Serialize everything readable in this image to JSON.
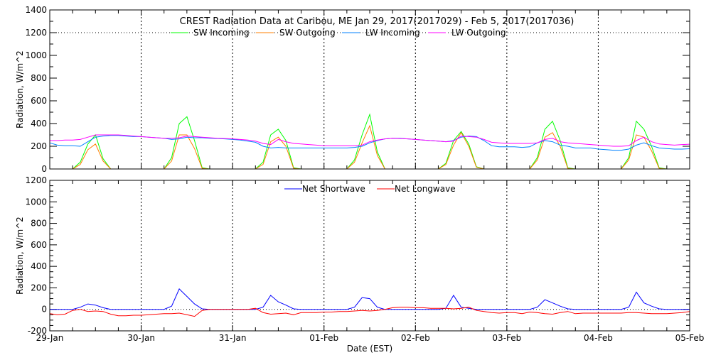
{
  "chart_data": [
    {
      "type": "line",
      "title": "CREST Radiation Data at Caribou, ME   Jan 29, 2017(2017029) - Feb  5, 2017(2017036)",
      "ylabel": "Radiation, W/m^2",
      "xlabel": "",
      "x_unit": "hours since 29-Jan 00:00 EST",
      "x_step_hours": 2,
      "ylim": [
        0,
        1400
      ],
      "yticks": [
        "0",
        "200",
        "400",
        "600",
        "800",
        "1000",
        "1200",
        "1400"
      ],
      "legend_placement": "top-center",
      "series": [
        {
          "name": "SW Incoming",
          "color": "#00ff00",
          "values": [
            0,
            0,
            0,
            0,
            60,
            220,
            300,
            90,
            0,
            0,
            0,
            0,
            0,
            0,
            0,
            0,
            100,
            400,
            460,
            250,
            10,
            0,
            0,
            0,
            0,
            0,
            0,
            0,
            60,
            300,
            350,
            250,
            10,
            0,
            0,
            0,
            0,
            0,
            0,
            0,
            80,
            300,
            480,
            150,
            0,
            0,
            0,
            0,
            0,
            0,
            0,
            0,
            50,
            250,
            330,
            220,
            20,
            0,
            0,
            0,
            0,
            0,
            0,
            0,
            100,
            350,
            420,
            250,
            10,
            0,
            0,
            0,
            0,
            0,
            0,
            0,
            100,
            420,
            350,
            200,
            10,
            0,
            0,
            0,
            0
          ]
        },
        {
          "name": "SW Outgoing",
          "color": "#ff7f00",
          "values": [
            0,
            0,
            0,
            0,
            40,
            170,
            220,
            70,
            0,
            0,
            0,
            0,
            0,
            0,
            0,
            0,
            70,
            300,
            300,
            180,
            5,
            0,
            0,
            0,
            0,
            0,
            0,
            0,
            40,
            240,
            280,
            200,
            5,
            0,
            0,
            0,
            0,
            0,
            0,
            0,
            60,
            230,
            380,
            120,
            0,
            0,
            0,
            0,
            0,
            0,
            0,
            0,
            40,
            210,
            320,
            200,
            15,
            0,
            0,
            0,
            0,
            0,
            0,
            0,
            80,
            280,
            320,
            200,
            5,
            0,
            0,
            0,
            0,
            0,
            0,
            0,
            80,
            300,
            280,
            160,
            5,
            0,
            0,
            0,
            0
          ]
        },
        {
          "name": "LW Incoming",
          "color": "#0080ff",
          "values": [
            230,
            210,
            205,
            205,
            200,
            240,
            280,
            290,
            295,
            295,
            290,
            285,
            285,
            280,
            275,
            270,
            260,
            265,
            280,
            275,
            275,
            270,
            268,
            265,
            260,
            255,
            245,
            235,
            200,
            185,
            190,
            185,
            185,
            185,
            185,
            185,
            185,
            185,
            185,
            185,
            190,
            200,
            230,
            250,
            265,
            270,
            270,
            265,
            260,
            255,
            250,
            245,
            240,
            250,
            280,
            290,
            285,
            250,
            205,
            195,
            195,
            195,
            190,
            195,
            230,
            250,
            240,
            210,
            200,
            185,
            185,
            185,
            175,
            170,
            165,
            165,
            175,
            210,
            230,
            205,
            185,
            180,
            175,
            175,
            178
          ]
        },
        {
          "name": "LW Outgoing",
          "color": "#ff00ff",
          "values": [
            250,
            250,
            255,
            255,
            260,
            280,
            300,
            300,
            300,
            300,
            295,
            290,
            285,
            280,
            275,
            270,
            270,
            275,
            290,
            285,
            280,
            275,
            270,
            268,
            265,
            260,
            255,
            245,
            225,
            215,
            260,
            240,
            225,
            220,
            215,
            210,
            205,
            205,
            205,
            205,
            205,
            210,
            240,
            255,
            265,
            270,
            268,
            265,
            260,
            255,
            250,
            245,
            240,
            245,
            290,
            285,
            280,
            260,
            235,
            230,
            225,
            225,
            225,
            225,
            230,
            260,
            270,
            240,
            230,
            225,
            220,
            215,
            210,
            205,
            200,
            200,
            205,
            250,
            280,
            240,
            220,
            215,
            210,
            215,
            218
          ]
        }
      ]
    },
    {
      "type": "line",
      "title": "",
      "ylabel": "Radiation, W/m^2",
      "xlabel": "Date (EST)",
      "x_unit": "hours since 29-Jan 00:00 EST",
      "x_step_hours": 2,
      "ylim": [
        -200,
        1200
      ],
      "yticks": [
        "-200",
        "0",
        "200",
        "400",
        "600",
        "800",
        "1000",
        "1200"
      ],
      "xticks": [
        "29-Jan",
        "30-Jan",
        "31-Jan",
        "01-Feb",
        "02-Feb",
        "03-Feb",
        "04-Feb",
        "05-Feb"
      ],
      "legend_placement": "top-center",
      "series": [
        {
          "name": "Net Shortwave",
          "color": "#0000ff",
          "values": [
            0,
            0,
            0,
            0,
            20,
            50,
            40,
            15,
            0,
            0,
            0,
            0,
            0,
            0,
            0,
            0,
            30,
            190,
            120,
            50,
            5,
            0,
            0,
            0,
            0,
            0,
            0,
            0,
            20,
            130,
            70,
            40,
            5,
            0,
            0,
            0,
            0,
            0,
            0,
            0,
            20,
            110,
            100,
            20,
            0,
            0,
            0,
            0,
            0,
            0,
            0,
            0,
            10,
            130,
            20,
            10,
            0,
            0,
            0,
            0,
            0,
            0,
            0,
            0,
            20,
            90,
            60,
            30,
            5,
            0,
            0,
            0,
            0,
            0,
            0,
            0,
            20,
            160,
            60,
            30,
            5,
            0,
            0,
            0,
            0
          ]
        },
        {
          "name": "Net Longwave",
          "color": "#ff0000",
          "values": [
            -40,
            -50,
            -45,
            -10,
            0,
            -20,
            -15,
            -20,
            -45,
            -60,
            -60,
            -55,
            -55,
            -50,
            -45,
            -40,
            -40,
            -35,
            -50,
            -65,
            -10,
            0,
            0,
            0,
            0,
            0,
            0,
            10,
            -30,
            -45,
            -40,
            -35,
            -50,
            -30,
            -30,
            -30,
            -25,
            -25,
            -20,
            -20,
            -15,
            -10,
            -15,
            -10,
            0,
            15,
            20,
            20,
            15,
            15,
            10,
            10,
            10,
            5,
            10,
            20,
            -10,
            -20,
            -30,
            -35,
            -30,
            -30,
            -40,
            -25,
            -30,
            -40,
            -45,
            -30,
            -20,
            -40,
            -35,
            -35,
            -35,
            -35,
            -35,
            -35,
            -30,
            -30,
            -35,
            -40,
            -40,
            -40,
            -35,
            -30,
            -20
          ]
        }
      ]
    }
  ]
}
